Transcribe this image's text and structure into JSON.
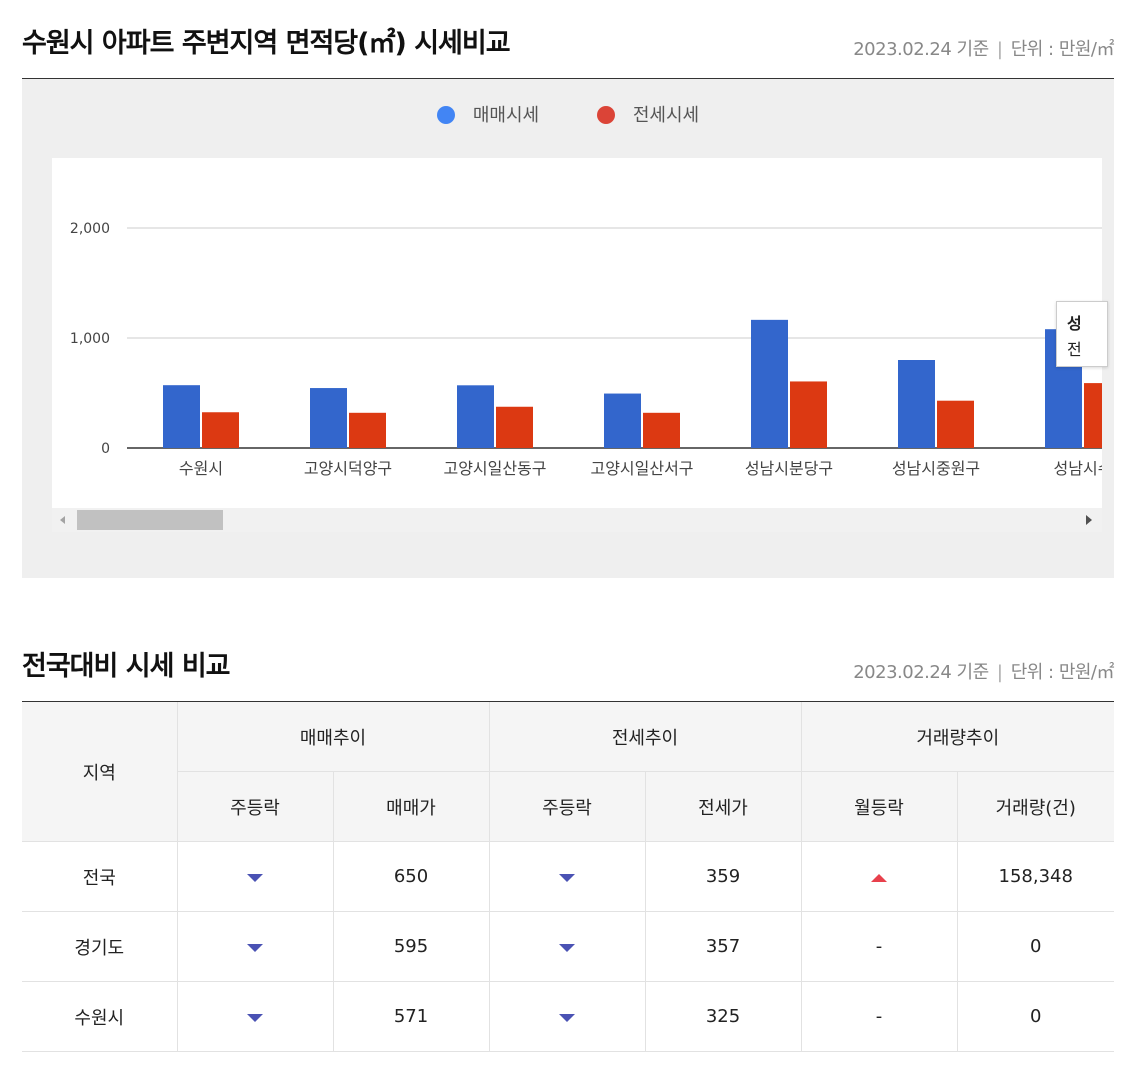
{
  "section1": {
    "title": "수원시 아파트 주변지역 면적당(㎡) 시세비교",
    "date": "2023.02.24 기준",
    "separator": "|",
    "unit": "단위 : 만원/㎡"
  },
  "colors": {
    "sale": "#3366cc",
    "jeonse": "#dc3912",
    "legend_sale": "#4285f4",
    "legend_jeonse": "#db4437"
  },
  "chart_data": {
    "type": "bar",
    "categories": [
      "수원시",
      "고양시덕양구",
      "고양시일산동구",
      "고양시일산서구",
      "성남시분당구",
      "성남시중원구",
      "성남시수"
    ],
    "series": [
      {
        "name": "매매시세",
        "values": [
          571,
          545,
          570,
          495,
          1165,
          800,
          1080
        ]
      },
      {
        "name": "전세시세",
        "values": [
          325,
          320,
          375,
          320,
          605,
          430,
          590
        ]
      }
    ],
    "y_ticks": [
      "0",
      "1,000",
      "2,000"
    ],
    "ylim": [
      0,
      2000
    ],
    "grid": true,
    "legend": "top-center",
    "tooltip_lines": [
      "성",
      "전"
    ]
  },
  "section2": {
    "title": "전국대비 시세 비교",
    "date": "2023.02.24 기준",
    "separator": "|",
    "unit": "단위 : 만원/㎡"
  },
  "table": {
    "region_header": "지역",
    "groups": [
      "매매추이",
      "전세추이",
      "거래량추이"
    ],
    "subheaders": [
      "주등락",
      "매매가",
      "주등락",
      "전세가",
      "월등락",
      "거래량(건)"
    ],
    "rows": [
      {
        "region": "전국",
        "sale_trend": "down",
        "sale_price": "650",
        "jeonse_trend": "down",
        "jeonse_price": "359",
        "vol_trend": "up",
        "vol_trend_text": "",
        "volume": "158,348"
      },
      {
        "region": "경기도",
        "sale_trend": "down",
        "sale_price": "595",
        "jeonse_trend": "down",
        "jeonse_price": "357",
        "vol_trend": "none",
        "vol_trend_text": "-",
        "volume": "0"
      },
      {
        "region": "수원시",
        "sale_trend": "down",
        "sale_price": "571",
        "jeonse_trend": "down",
        "jeonse_price": "325",
        "vol_trend": "none",
        "vol_trend_text": "-",
        "volume": "0"
      }
    ]
  }
}
